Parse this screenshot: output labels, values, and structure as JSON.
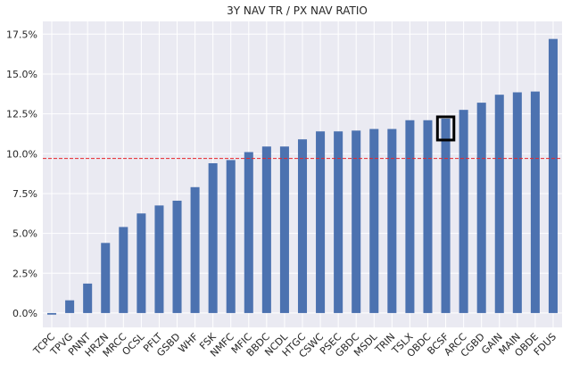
{
  "chart_data": {
    "type": "bar",
    "title": "3Y NAV TR / PX NAV RATIO",
    "xlabel": "",
    "ylabel": "",
    "categories": [
      "TCPC",
      "TPVG",
      "PNNT",
      "HRZN",
      "MRCC",
      "OCSL",
      "PFLT",
      "GSBD",
      "WHF",
      "FSK",
      "NMFC",
      "MFIC",
      "BBDC",
      "NCDL",
      "HTGC",
      "CSWC",
      "PSEC",
      "GBDC",
      "MSDL",
      "TRIN",
      "TSLX",
      "OBDC",
      "BCSF",
      "ARCC",
      "CGBD",
      "GAIN",
      "MAIN",
      "OBDE",
      "FDUS"
    ],
    "values": [
      -0.1,
      0.8,
      1.85,
      4.4,
      5.4,
      6.25,
      6.75,
      7.05,
      7.9,
      9.4,
      9.6,
      10.1,
      10.45,
      10.45,
      10.9,
      11.4,
      11.4,
      11.45,
      11.55,
      11.55,
      12.1,
      12.1,
      12.2,
      12.75,
      13.2,
      13.7,
      13.85,
      13.9,
      17.2
    ],
    "ylim": [
      -0.9,
      18.3
    ],
    "yticks": [
      0,
      2.5,
      5,
      7.5,
      10,
      12.5,
      15,
      17.5
    ],
    "ytick_labels": [
      "0.0%",
      "2.5%",
      "5.0%",
      "7.5%",
      "10.0%",
      "12.5%",
      "15.0%",
      "17.5%"
    ],
    "reference_line": {
      "value": 9.7,
      "color": "#e8242a",
      "style": "dashed"
    },
    "highlight": {
      "category": "BCSF",
      "style": "black-rectangle"
    },
    "bar_color": "#4c72b0",
    "plot_background": "#eaeaf2",
    "grid_color": "#ffffff",
    "grid": true
  }
}
